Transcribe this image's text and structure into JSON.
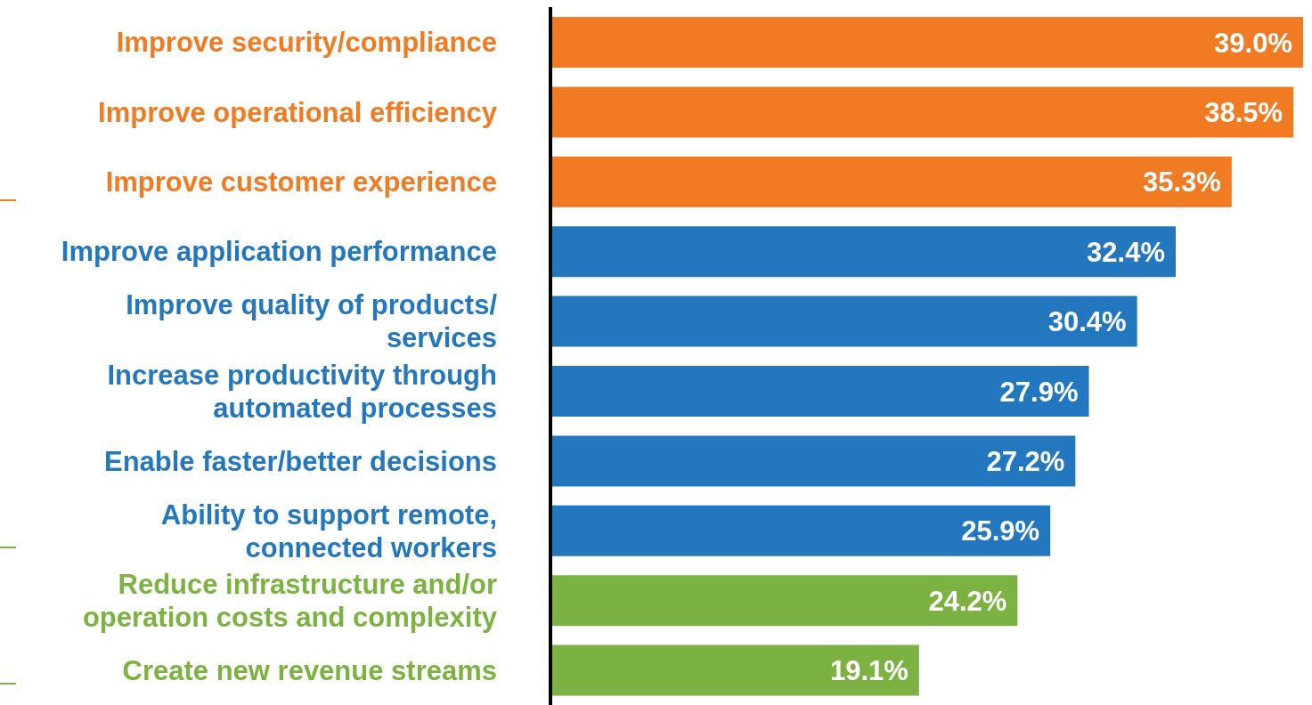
{
  "chart_data": {
    "type": "bar",
    "orientation": "horizontal",
    "categories": [
      "Improve security/compliance",
      "Improve operational efficiency",
      "Improve customer experience",
      "Improve application performance",
      "Improve quality of products/ services",
      "Increase productivity through automated processes",
      "Enable faster/better decisions",
      "Ability to support remote, connected workers",
      "Reduce infrastructure and/or operation costs and complexity",
      "Create new revenue streams"
    ],
    "values": [
      39.0,
      38.5,
      35.3,
      32.4,
      30.4,
      27.9,
      27.2,
      25.9,
      24.2,
      19.1
    ],
    "colors": [
      "#f07b22",
      "#f07b22",
      "#f07b22",
      "#2277be",
      "#2277be",
      "#2277be",
      "#2277be",
      "#2277be",
      "#7cb241",
      "#7cb241"
    ],
    "value_labels": [
      "39.0%",
      "38.5%",
      "35.3%",
      "32.4%",
      "30.4%",
      "27.9%",
      "27.2%",
      "25.9%",
      "24.2%",
      "19.1%"
    ],
    "legend": false
  }
}
